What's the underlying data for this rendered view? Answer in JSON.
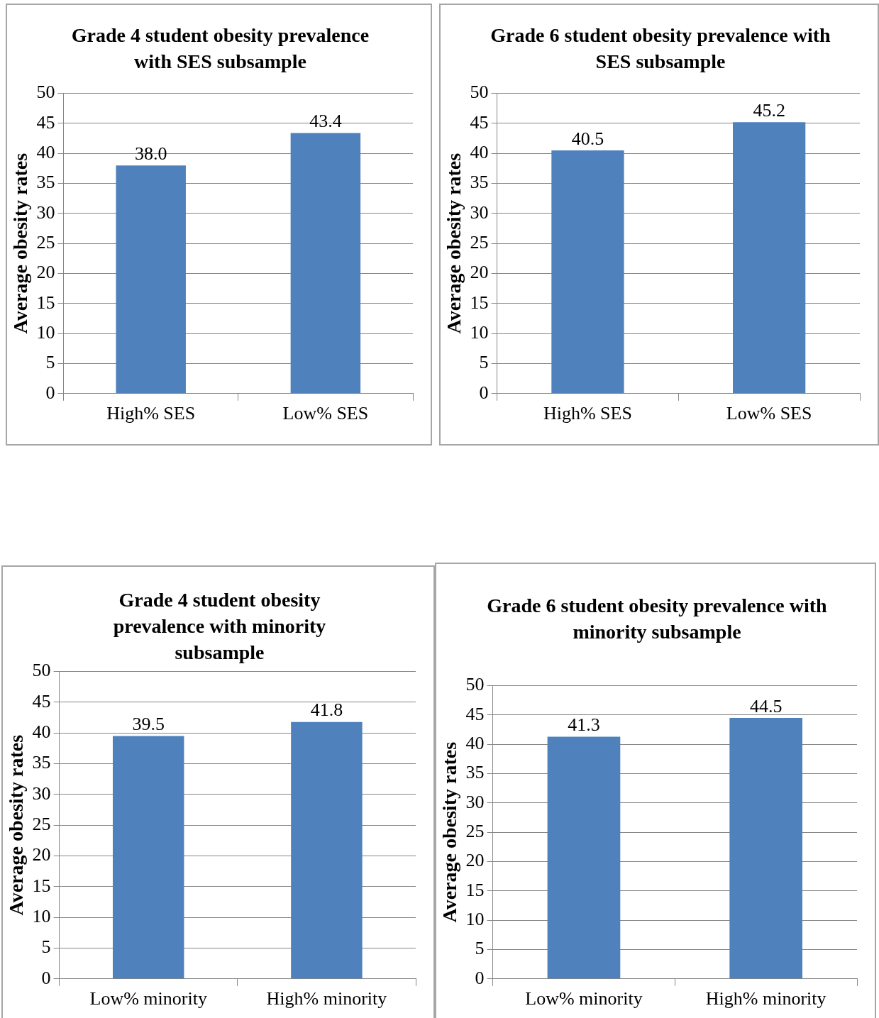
{
  "chart_data": [
    {
      "type": "bar",
      "title": "Grade 4 student obesity prevalence with SES subsample",
      "ylabel": "Average obesity rates",
      "categories": [
        "High% SES",
        "Low% SES"
      ],
      "values": [
        38.0,
        43.4
      ],
      "value_labels": [
        "38.0",
        "43.4"
      ],
      "color": "#4f81bd",
      "ylim": [
        0,
        50
      ],
      "yticks": [
        0,
        5,
        10,
        15,
        20,
        25,
        30,
        35,
        40,
        45,
        50
      ],
      "grid": "y"
    },
    {
      "type": "bar",
      "title": "Grade 6 student obesity prevalence with SES subsample",
      "ylabel": "Average obesity rates",
      "categories": [
        "High% SES",
        "Low% SES"
      ],
      "values": [
        40.5,
        45.2
      ],
      "value_labels": [
        "40.5",
        "45.2"
      ],
      "color": "#4f81bd",
      "ylim": [
        0,
        50
      ],
      "yticks": [
        0,
        5,
        10,
        15,
        20,
        25,
        30,
        35,
        40,
        45,
        50
      ],
      "grid": "y"
    },
    {
      "type": "bar",
      "title": "Grade 4 student obesity prevalence with minority subsample",
      "ylabel": "Average obesity rates",
      "categories": [
        "Low% minority",
        "High% minority"
      ],
      "values": [
        39.5,
        41.8
      ],
      "value_labels": [
        "39.5",
        "41.8"
      ],
      "color": "#4f81bd",
      "ylim": [
        0,
        50
      ],
      "yticks": [
        0,
        5,
        10,
        15,
        20,
        25,
        30,
        35,
        40,
        45,
        50
      ],
      "grid": "y"
    },
    {
      "type": "bar",
      "title": "Grade 6 student obesity prevalence with minority subsample",
      "ylabel": "Average obesity rates",
      "categories": [
        "Low% minority",
        "High% minority"
      ],
      "values": [
        41.3,
        44.5
      ],
      "value_labels": [
        "41.3",
        "44.5"
      ],
      "color": "#4f81bd",
      "ylim": [
        0,
        50
      ],
      "yticks": [
        0,
        5,
        10,
        15,
        20,
        25,
        30,
        35,
        40,
        45,
        50
      ],
      "grid": "y"
    }
  ]
}
